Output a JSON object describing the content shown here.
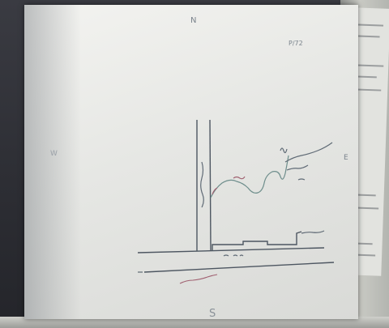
{
  "photo": {
    "sketch_labels": {
      "north": "N",
      "south": "S",
      "east": "E",
      "west": "W",
      "page_mark": "P/72"
    },
    "colors": {
      "paper": "#ececea",
      "ink": "#5f6a75",
      "background": "#2c2d33"
    }
  }
}
